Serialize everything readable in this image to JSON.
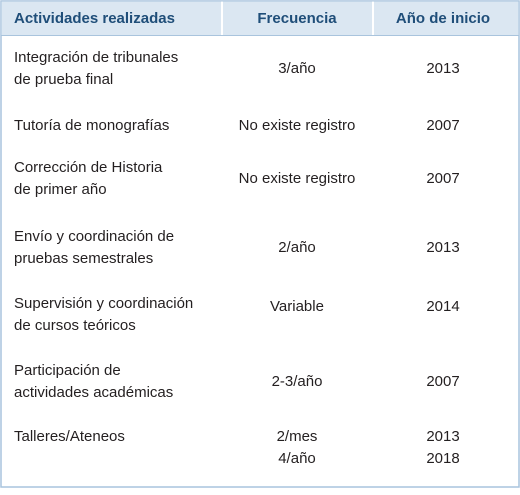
{
  "table": {
    "header": [
      "Actividades realizadas",
      "Frecuencia",
      "Año de inicio"
    ],
    "rows": [
      [
        [
          "Integración de tribunales",
          "de prueba final"
        ],
        [
          "3/año"
        ],
        [
          "2013"
        ]
      ],
      [
        [
          "Tutoría de monografías"
        ],
        [
          "No existe registro"
        ],
        [
          "2007"
        ]
      ],
      [
        [
          "Corrección de Historia",
          "de primer año"
        ],
        [
          "No existe registro"
        ],
        [
          "2007"
        ]
      ],
      [
        [
          "Envío y coordinación de",
          "pruebas semestrales"
        ],
        [
          "2/año"
        ],
        [
          "2013"
        ]
      ],
      [
        [
          "Supervisión y coordinación",
          "de cursos teóricos"
        ],
        [
          "Variable"
        ],
        [
          "2014"
        ]
      ],
      [
        [
          "Participación de",
          "actividades académicas"
        ],
        [
          "2-3/año"
        ],
        [
          "2007"
        ]
      ],
      [
        [
          "Talleres/Ateneos"
        ],
        [
          "2/mes",
          "4/año"
        ],
        [
          "2013",
          "2018"
        ]
      ]
    ]
  }
}
